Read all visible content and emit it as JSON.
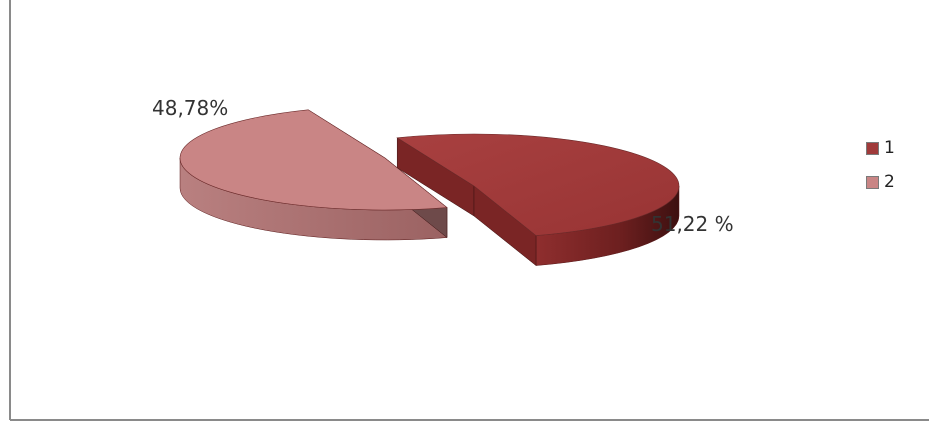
{
  "chart_data": {
    "type": "pie",
    "style": "3d-exploded",
    "title": "",
    "categories": [
      "1",
      "2"
    ],
    "values": [
      51.22,
      48.78
    ],
    "data_labels": [
      "51,22 %",
      "48,78%"
    ],
    "colors": [
      "#A03A3A",
      "#C98585"
    ],
    "legend": {
      "placement": "right",
      "entries": [
        "1",
        "2"
      ]
    }
  }
}
